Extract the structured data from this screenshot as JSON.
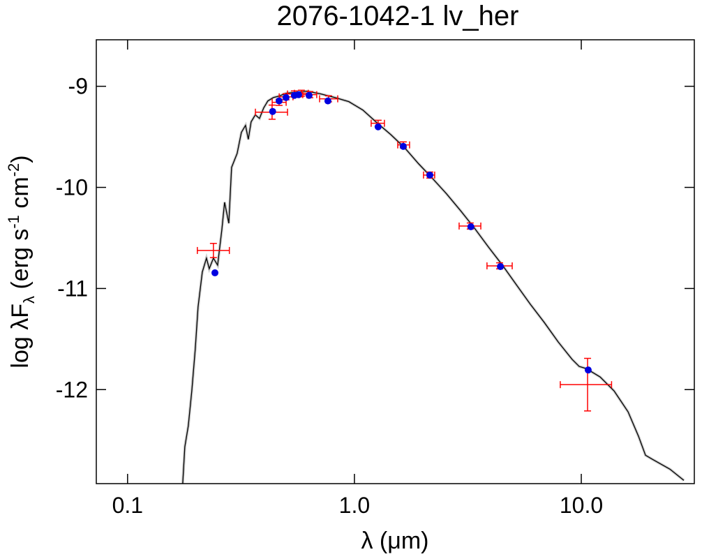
{
  "chart_data": {
    "type": "line",
    "title": "2076-1042-1   lv_her",
    "xlabel": "λ (μm)",
    "ylabel": [
      "log λF",
      "λ",
      " (erg s",
      "-1",
      " cm",
      "-2",
      ")"
    ],
    "xscale": "log",
    "xlim": [
      0.0728,
      31.5
    ],
    "ylim": [
      -12.93,
      -8.54
    ],
    "xticks": [
      0.1,
      {
        "value": 1,
        "label": "1.0"
      },
      {
        "value": 10,
        "label": "10.0"
      }
    ],
    "yticks": [
      -9,
      -10,
      -11,
      -12
    ],
    "series": [
      {
        "color": "#000000",
        "x": [
          0.175,
          0.1788,
          0.1852,
          0.1919,
          0.1988,
          0.2045,
          0.2135,
          0.2227,
          0.2291,
          0.239,
          0.2494,
          0.2602,
          0.2677,
          0.2715,
          0.2794,
          0.2874,
          0.2956,
          0.3041,
          0.3174,
          0.3311,
          0.3406,
          0.3504,
          0.3656,
          0.3815,
          0.3981,
          0.4153,
          0.4395,
          0.4653,
          0.4994,
          0.5361,
          0.5754,
          0.6175,
          0.6631,
          0.7115,
          0.82,
          0.9449,
          1.089,
          1.254,
          1.445,
          1.665,
          1.919,
          2.211,
          2.548,
          2.936,
          3.382,
          3.898,
          4.491,
          5.174,
          5.963,
          6.869,
          7.914,
          9.12,
          9.79,
          10.51,
          12.11,
          13.95,
          16.08,
          17.88,
          19.19,
          20.6,
          24.59,
          28.34
        ],
        "values": [
          -12.93,
          -12.566,
          -12.359,
          -12.013,
          -11.598,
          -11.184,
          -10.838,
          -10.7,
          -10.804,
          -10.7,
          -10.769,
          -10.424,
          -10.147,
          -10.216,
          -10.355,
          -9.802,
          -9.733,
          -9.664,
          -9.456,
          -9.387,
          -9.525,
          -9.352,
          -9.283,
          -9.318,
          -9.214,
          -9.145,
          -9.111,
          -9.097,
          -9.069,
          -9.062,
          -9.055,
          -9.048,
          -9.062,
          -9.076,
          -9.111,
          -9.152,
          -9.235,
          -9.359,
          -9.477,
          -9.608,
          -9.767,
          -9.912,
          -10.064,
          -10.23,
          -10.403,
          -10.59,
          -10.769,
          -10.963,
          -11.156,
          -11.336,
          -11.529,
          -11.702,
          -11.771,
          -11.792,
          -11.875,
          -12.013,
          -12.22,
          -12.462,
          -12.649,
          -12.69,
          -12.787,
          -12.898
        ]
      },
      {
        "color": "#ff0000",
        "x": [
          0.239,
          0.4335,
          0.4655,
          0.4994,
          0.5436,
          0.5835,
          0.636,
          0.769,
          1.272,
          1.642,
          2.149,
          3.24,
          4.365,
          10.66
        ],
        "values": [
          -10.624,
          -9.256,
          -9.159,
          -9.104,
          -9.076,
          -9.069,
          -9.083,
          -9.124,
          -9.366,
          -9.58,
          -9.878,
          -10.382,
          -10.776,
          -11.951
        ],
        "xlow": [
          0.203,
          0.366,
          0.434,
          0.466,
          0.507,
          0.544,
          0.592,
          0.702,
          1.185,
          1.552,
          2.016,
          2.894,
          3.84,
          8.08
        ],
        "xhigh": [
          0.281,
          0.507,
          0.5,
          0.536,
          0.584,
          0.626,
          0.682,
          0.844,
          1.356,
          1.75,
          2.258,
          3.607,
          4.96,
          13.6
        ],
        "yerr": [
          0.07,
          0.07,
          0.03,
          0.03,
          0.03,
          0.03,
          0.03,
          0.03,
          0.03,
          0.03,
          0.03,
          0.03,
          0.03,
          0.26
        ]
      },
      {
        "color": "#0000e0",
        "x": [
          0.2427,
          0.436,
          0.4655,
          0.4994,
          0.5436,
          0.5675,
          0.631,
          0.764,
          1.272,
          1.642,
          2.149,
          3.26,
          4.4,
          10.73
        ],
        "values": [
          -10.845,
          -9.249,
          -9.145,
          -9.111,
          -9.09,
          -9.083,
          -9.09,
          -9.145,
          -9.401,
          -9.594,
          -9.878,
          -10.389,
          -10.783,
          -11.806
        ]
      }
    ]
  }
}
